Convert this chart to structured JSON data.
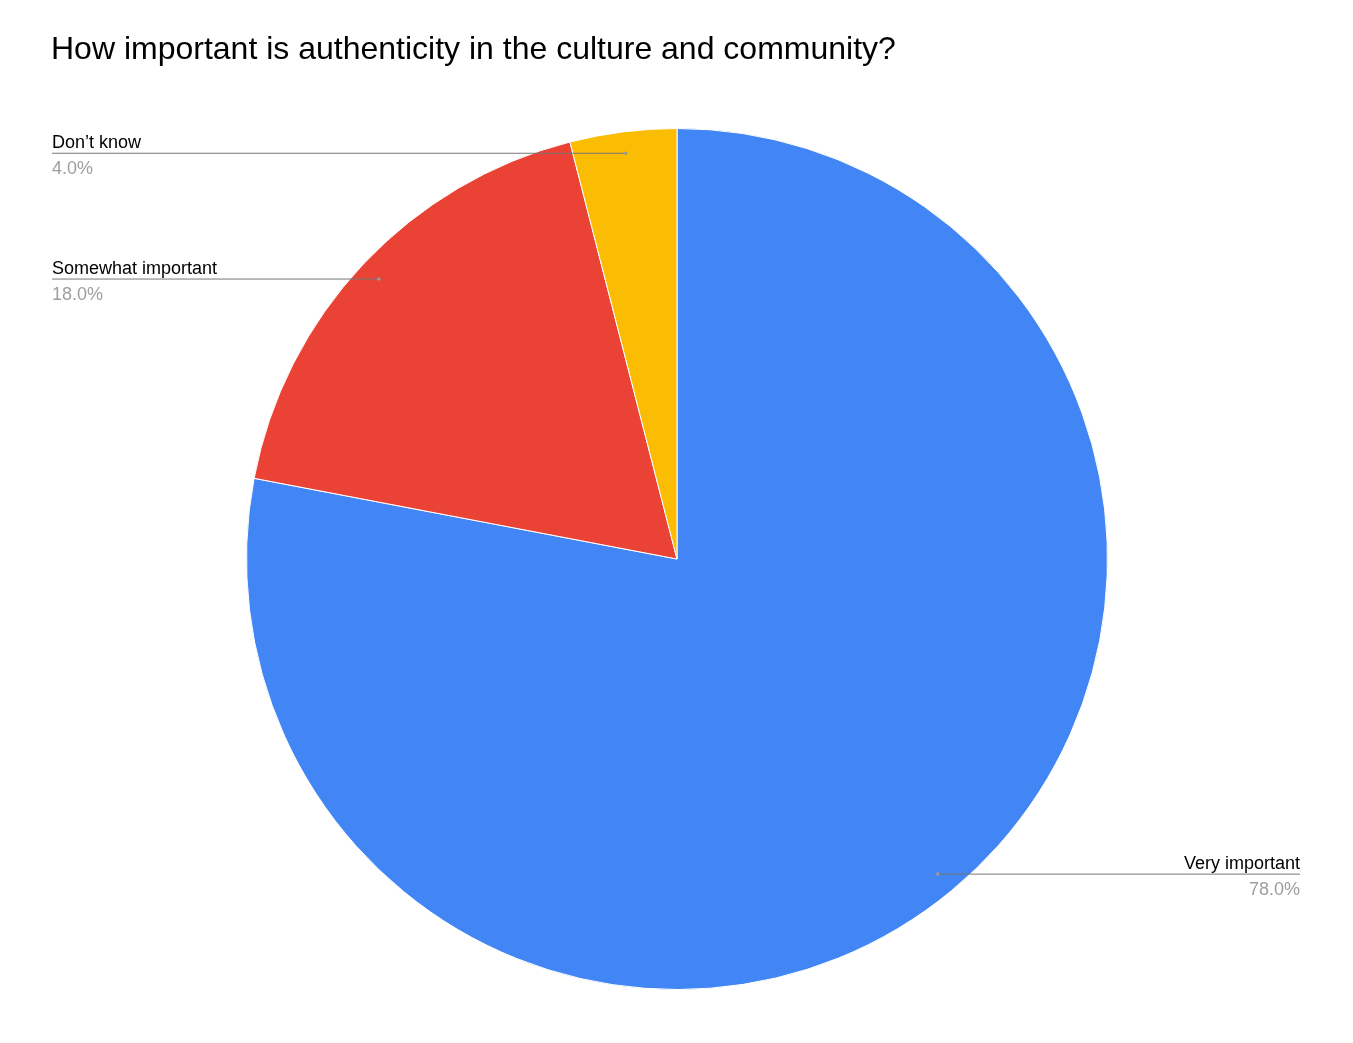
{
  "chart_data": {
    "type": "pie",
    "title": "How important is authenticity in the culture and community?",
    "categories": [
      "Very important",
      "Somewhat important",
      "Don’t know"
    ],
    "values": [
      78,
      18,
      4
    ],
    "colors": [
      "#4285f4",
      "#ea4335",
      "#fbbc04"
    ],
    "value_labels": [
      "78.0%",
      "18.0%",
      "4.0%"
    ],
    "legend": false
  }
}
